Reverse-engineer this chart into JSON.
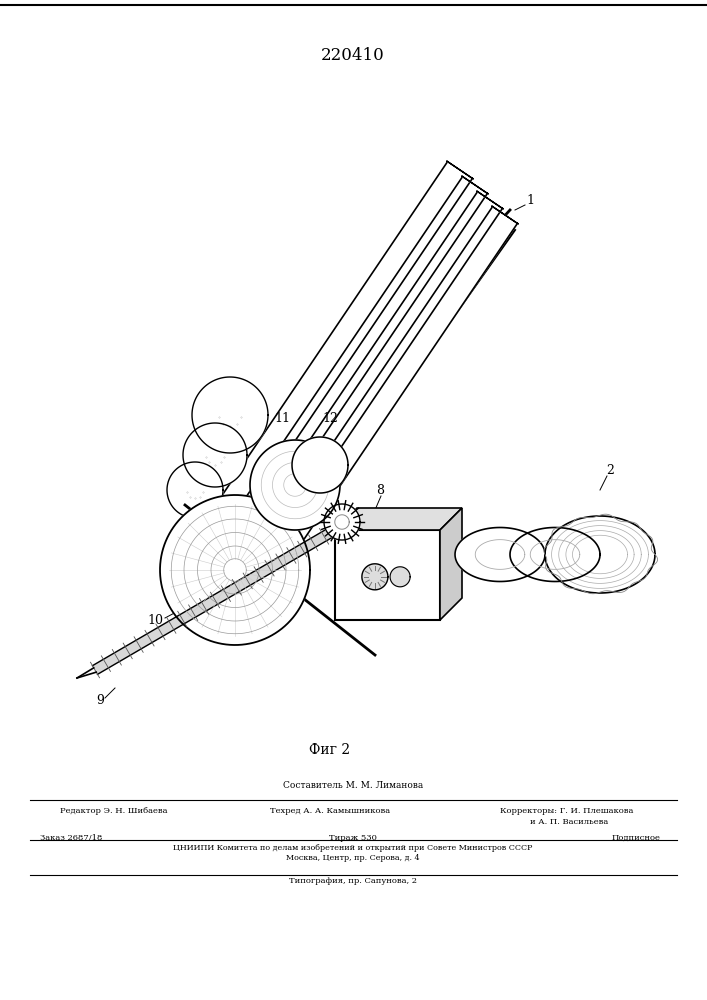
{
  "patent_number": "220410",
  "figure_label": "Фиг 2",
  "bg_color": "#ffffff",
  "line_color": "#000000",
  "footer": {
    "line1": "Составитель М. М. Лиманова",
    "line2a": "Редактор Э. Н. Шибаева",
    "line2b": "Техред А. А. Камышникова",
    "line2c": "Корректоры: Г. И. Плешакова",
    "line2d": "и А. П. Васильева",
    "line3a": "Заказ 2687/18",
    "line3b": "Тираж 530",
    "line3c": "Подписное",
    "line4": "ЦНИИПИ Комитета по делам изобретений и открытий при Совете Министров СССР",
    "line5": "Москва, Центр, пр. Серова, д. 4",
    "line6": "Типография, пр. Сапунова, 2"
  }
}
